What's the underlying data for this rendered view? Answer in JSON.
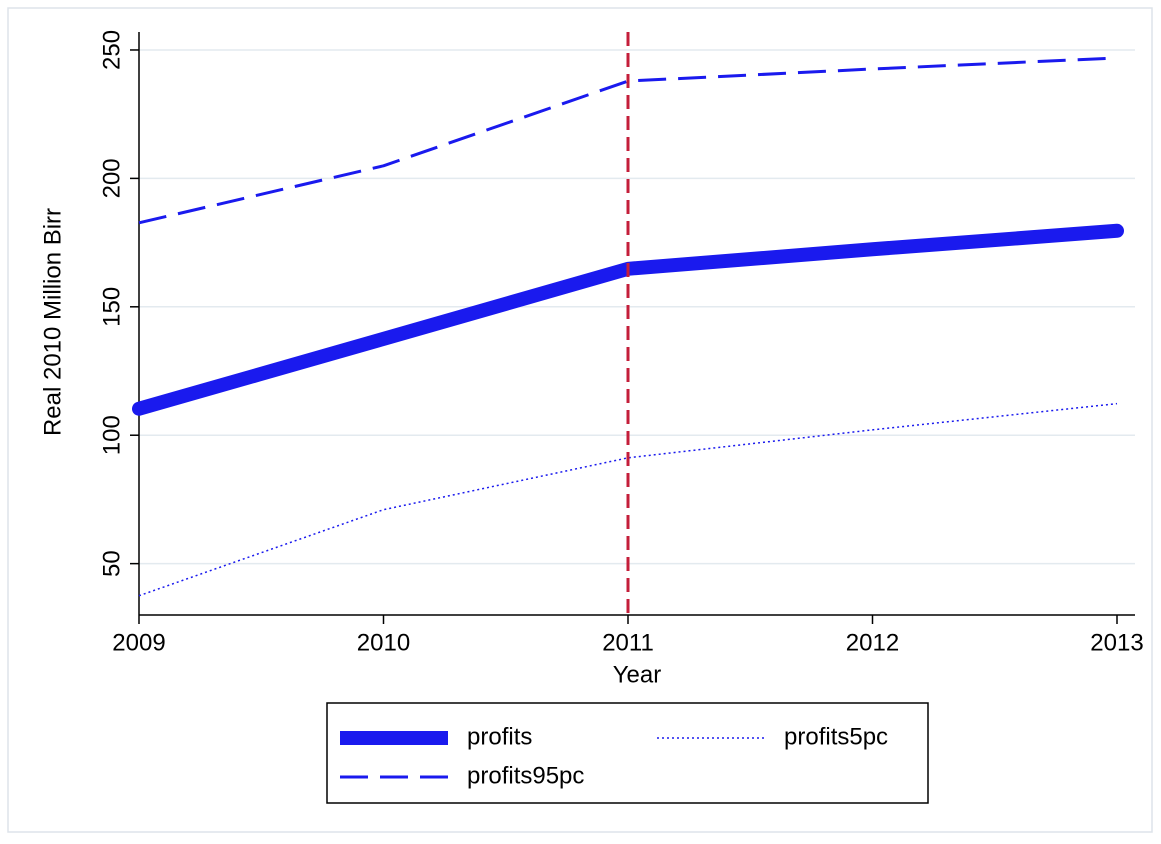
{
  "chart_data": {
    "type": "line",
    "x": [
      2009,
      2010,
      2011,
      2012,
      2013
    ],
    "series": [
      {
        "name": "profits",
        "color": "#1a1aee",
        "linestyle": "solid",
        "values": [
          110.3,
          137.5,
          164.8,
          172.4,
          179.6
        ]
      },
      {
        "name": "profits95pc",
        "color": "#1a1aee",
        "linestyle": "dash",
        "values": [
          182.7,
          204.9,
          237.9,
          242.6,
          246.9
        ]
      },
      {
        "name": "profits5pc",
        "color": "#1a1aee",
        "linestyle": "dot",
        "values": [
          37.5,
          71,
          91.2,
          102.1,
          112.3
        ]
      }
    ],
    "xlabel": "Year",
    "ylabel": "Real 2010 Million Birr",
    "xlim": [
      2009,
      2013.07
    ],
    "ylim": [
      30,
      257
    ],
    "xticks": [
      2009,
      2010,
      2011,
      2012,
      2013
    ],
    "yticks": [
      50,
      100,
      150,
      200,
      250
    ],
    "grid": true,
    "xline": {
      "value": 2011,
      "color": "#c41e3a"
    },
    "legend": "bottom"
  }
}
